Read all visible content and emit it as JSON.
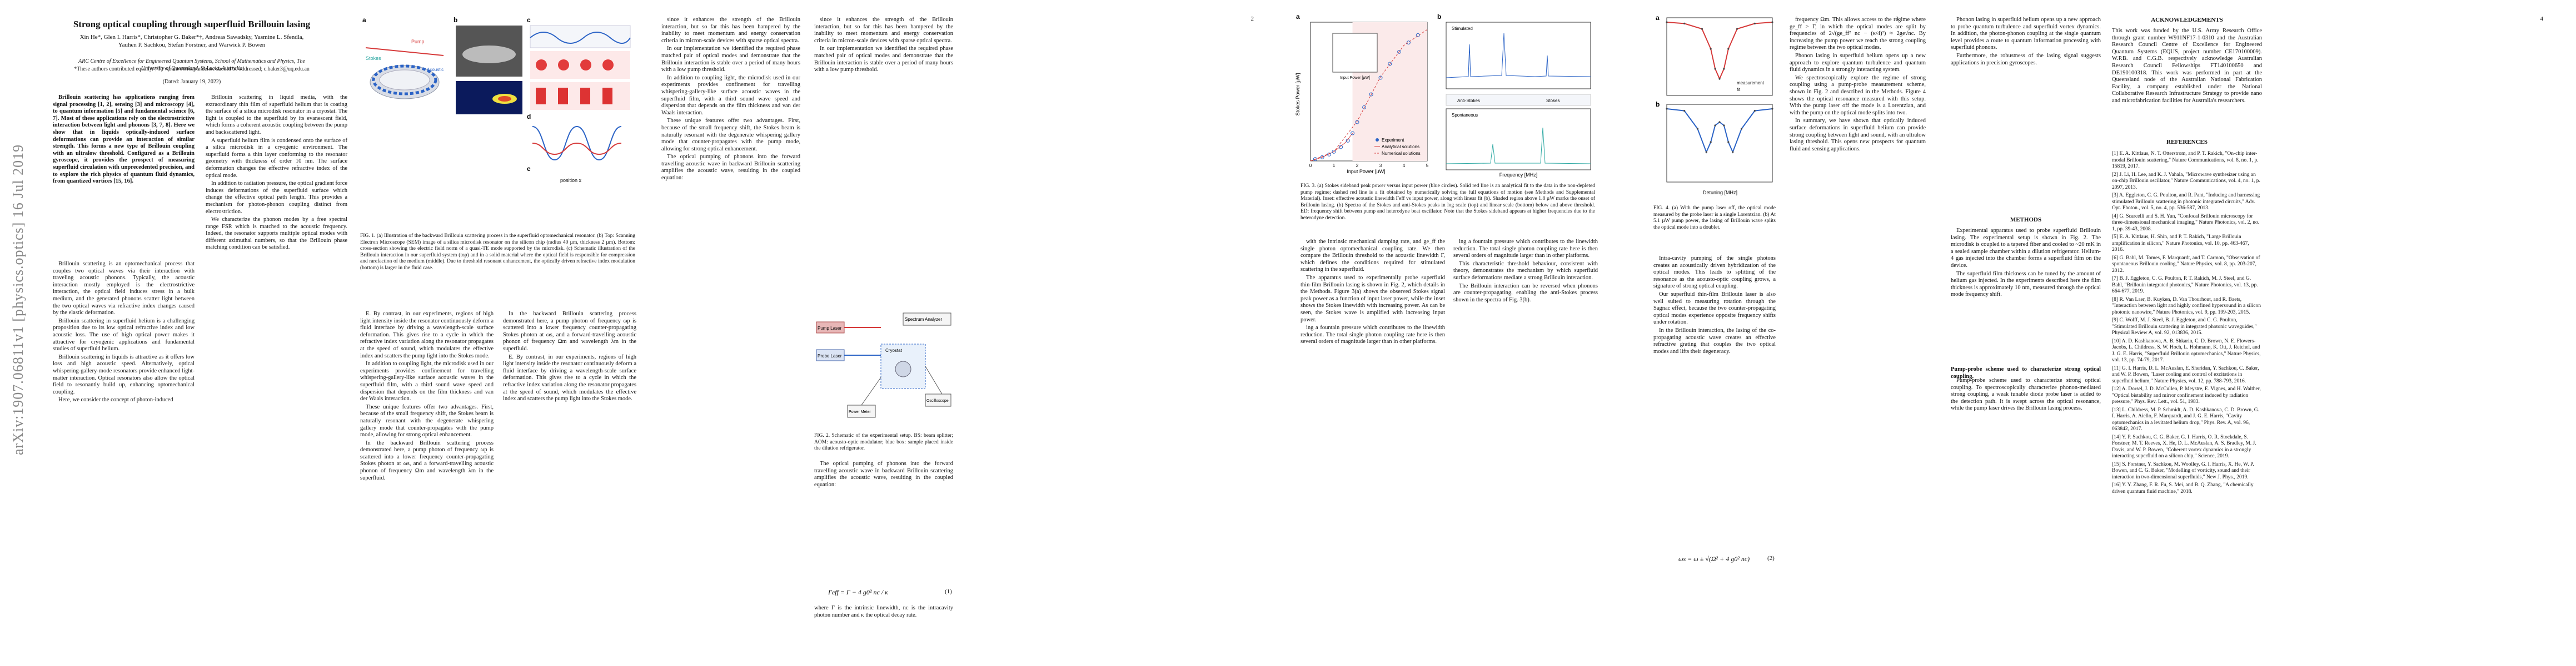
{
  "arxiv_stamp": "arXiv:1907.06811v1  [physics.optics]  16 Jul 2019",
  "page_numbers": [
    "2",
    "3",
    "4"
  ],
  "title": "Strong optical coupling through superfluid Brillouin lasing",
  "authors": "Xin He*, Glen I. Harris*, Christopher G. Baker*†, Andreas Sawadsky, Yasmine L. Sfendla, Yauhen P. Sachkou, Stefan Forstner, and Warwick P. Bowen",
  "affiliation": "ARC Centre of Excellence for Engineered Quantum Systems, School of Mathematics and Physics, The University of Queensland, St Lucia, Australia",
  "footnote": "*These authors contributed equally. †To whom correspondence should be addressed; c.baker3@uq.edu.au",
  "date": "(Dated: January 19, 2022)",
  "abstract": "Brillouin scattering has applications ranging from signal processing [1, 2], sensing [3] and microscopy [4], to quantum information [5] and fundamental science [6, 7]. Most of these applications rely on the electrostrictive interaction between light and phonons [3, 7, 8]. Here we show that in liquids optically-induced surface deformations can provide an interaction of similar strength. This forms a new type of Brillouin coupling with an ultralow threshold. Configured as a Brillouin gyroscope, it provides the prospect of measuring superfluid circulation with unprecedented precision, and to explore the rich physics of quantum fluid dynamics, from quantized vortices [15, 16].",
  "p1_col1": [
    "Brillouin scattering is an optomechanical process that couples two optical waves via their interaction with traveling acoustic phonons. Typically, the acoustic interaction mostly employed is the electrostrictive interaction, the optical field induces stress in a bulk medium, and the generated phonons scatter light between the two optical waves via refractive index changes caused by the elastic deformation.",
    "Brillouin scattering in superfluid helium is a challenging proposition due to its low optical refractive index and low acoustic loss. The use of high optical power makes it attractive for cryogenic applications and fundamental studies of superfluid helium.",
    "Brillouin scattering in liquids is attractive as it offers low loss and high acoustic speed. Alternatively, optical whispering-gallery-mode resonators provide enhanced light-matter interaction. Optical resonators also allow the optical field to resonantly build up, enhancing optomechanical coupling.",
    "Here, we consider the concept of photon-induced"
  ],
  "p1_col2": [
    "Brillouin scattering in liquid media, with the extraordinary thin film of superfluid helium that is coating the surface of a silica microdisk resonator in a cryostat. The light is coupled to the superfluid by its evanescent field, which forms a coherent acoustic coupling between the pump and backscattered light.",
    "A superfluid helium film is condensed onto the surface of a silica microdisk in a cryogenic environment. The superfluid forms a thin layer conforming to the resonator geometry with thickness of order 10 nm. The surface deformation changes the effective refractive index of the optical mode.",
    "In addition to radiation pressure, the optical gradient force induces deformations of the superfluid surface which change the effective optical path length. This provides a mechanism for photon-phonon coupling distinct from electrostriction.",
    "We characterize the phonon modes by a free spectral range FSR which is matched to the acoustic frequency. Indeed, the resonator supports multiple optical modes with different azimuthal numbers, so that the Brillouin phase matching condition can be satisfied."
  ],
  "fig1_labels": {
    "a": "a",
    "b": "b",
    "c": "c",
    "d": "d",
    "e": "e",
    "pump": "Pump",
    "stokes": "Stokes",
    "acoustic": "Acoustic",
    "position": "position x"
  },
  "fig1_caption": "FIG. 1. (a) Illustration of the backward Brillouin scattering process in the superfluid optomechanical resonator. (b) Top: Scanning Electron Microscope (SEM) image of a silica microdisk resonator on the silicon chip (radius 40 µm, thickness 2 µm). Bottom: cross-section showing the electric field norm of a quasi-TE mode supported by the microdisk. (c) Schematic illustration of the Brillouin interaction in our superfluid system (top) and in a solid material where the optical field is responsible for compression and rarefaction of the medium (middle). Due to threshold resonant enhancement, the optically driven refractive index modulation (bottom) is larger in the fluid case.",
  "p2_col1": [
    "E. By contrast, in our experiments, regions of high light intensity inside the resonator continuously deform a fluid interface by driving a wavelength-scale surface deformation. This gives rise to a cycle in which the refractive index variation along the resonator propagates at the speed of sound, which modulates the effective index and scatters the pump light into the Stokes mode.",
    "In addition to coupling light, the microdisk used in our experiments provides confinement for travelling whispering-gallery-like surface acoustic waves in the superfluid film, with a third sound wave speed and dispersion that depends on the film thickness and van der Waals interaction.",
    "These unique features offer two advantages. First, because of the small frequency shift, the Stokes beam is naturally resonant with the degenerate whispering gallery mode that counter-propagates with the pump mode, allowing for strong optical enhancement.",
    "In the backward Brillouin scattering process demonstrated here, a pump photon of frequency ωp is scattered into a lower frequency counter-propagating Stokes photon at ωs, and a forward-travelling acoustic phonon of frequency Ωm and wavelength λm in the superfluid."
  ],
  "p2_col2": [
    "since it enhances the strength of the Brillouin interaction, but so far this has been hampered by the inability to meet momentum and energy conservation criteria in micron-scale devices with sparse optical spectra.",
    "In our implementation we identified the required phase matched pair of optical modes and demonstrate that the Brillouin interaction is stable over a period of many hours with a low pump threshold.",
    "The optical pumping of phonons into the forward travelling acoustic wave in backward Brillouin scattering amplifies the acoustic wave, resulting in the coupled equation:"
  ],
  "eq1": "Γeff = Γ − 4 g0² nc / κ",
  "eq1_num": "(1)",
  "p2_col2_after": "where Γ is the intrinsic linewidth, nc is the intracavity photon number and κ the optical decay rate.",
  "fig2_labels": {
    "pump_laser": "Pump Laser",
    "probe_laser": "Probe Laser",
    "spectrum_analyzer": "Spectrum Analyzer",
    "oscilloscope": "Oscilloscope",
    "cryostat": "Cryostat",
    "pd": "PD",
    "power_meter": "Power Meter"
  },
  "fig2_caption": "FIG. 2. Schematic of the experimental setup. BS: beam splitter; AOM: acousto-optic modulator; blue box: sample placed inside the dilution refrigerator.",
  "fig3_caption": "FIG. 3. (a) Stokes sideband peak power versus input power (blue circles). Solid red line is an analytical fit to the data in the non-depleted pump regime; dashed red line is a fit obtained by numerically solving the full equations of motion (see Methods and Supplemental Material). Inset: effective acoustic linewidth Γeff vs input power, along with linear fit (b). Shaded region above 1.8 µW marks the onset of Brillouin lasing. (b) Spectra of the Stokes and anti-Stokes peaks in log scale (top) and linear scale (bottom) below and above threshold. ED: frequency shift between pump and heterodyne beat oscillator. Note that the Stokes sideband appears at higher frequencies due to the heterodyne detection.",
  "fig3a": {
    "title": "",
    "xlabel": "Input Power [µW]",
    "ylabel": "Stokes Power [µW]",
    "inset_xlabel": "Input Power [µW]",
    "inset_ylabel": "Mechanical Linewidth [Hz]",
    "legend": [
      "Experiment",
      "Analytical solutions",
      "Numerical solutions"
    ],
    "xlim": [
      0,
      5
    ],
    "ylim": [
      0,
      0.015
    ]
  },
  "fig3b": {
    "label_top": "Stimulated",
    "label_mid": "Anti-Stokes",
    "label_stokes": "Stokes",
    "label_bottom": "Spontaneous",
    "xlabel": "Frequency [MHz]",
    "ylabel": "PSD"
  },
  "p3_col1": [
    "with the intrinsic mechanical damping rate, and ge_ff the single photon optomechanical coupling rate. We then compare the Brillouin threshold to the acoustic linewidth Γ, which defines the conditions required for stimulated scattering in the superfluid.",
    "The apparatus used to experimentally probe superfluid thin-film Brillouin lasing is shown in Fig. 2, which details in the Methods. Figure 3(a) shows the observed Stokes signal peak power as a function of input laser power, while the inset shows the Stokes linewidth with increasing power. As can be seen, the Stokes wave is amplified with increasing input power."
  ],
  "p3_col2": [
    "ing a fountain pressure which contributes to the linewidth reduction. The total single photon coupling rate here is then several orders of magnitude larger than in other platforms.",
    "This characteristic threshold behaviour, consistent with theory, demonstrates the mechanism by which superfluid surface deformations mediate a strong Brillouin interaction.",
    "The Brillouin interaction can be reversed when phonons are counter-propagating, enabling the anti-Stokes process shown in the spectra of Fig. 3(b)."
  ],
  "eq2": "ωs = ω ± √(Ω² + 4 g0² nc)",
  "eq2_num": "(2)",
  "p3_col3": [
    "Intra-cavity pumping of the single photons creates an acoustically driven hybridization of the optical modes. This leads to splitting of the resonance as the acousto-optic coupling grows, a signature of strong optical coupling.",
    "Our superfluid thin-film Brillouin laser is also well suited to measuring rotation through the Sagnac effect, because the two counter-propagating optical modes experience opposite frequency shifts under rotation.",
    "In the Brillouin interaction, the lasing of the co-propagating acoustic wave creates an effective refractive grating that couples the two optical modes and lifts their degeneracy."
  ],
  "fig4_labels": {
    "a": "a",
    "b": "b",
    "xlabel": "Detuning [MHz]",
    "ylabel": "Transmission",
    "legend_meas": "measurement",
    "legend_fit": "fit"
  },
  "fig4_caption": "FIG. 4. (a) With the pump laser off, the optical mode measured by the probe laser is a single Lorentzian. (b) At 5.1 µW pump power, the lasing of Brillouin wave splits the optical mode into a doublet.",
  "p4_col1": [
    "frequency Ωm. This allows access to the regime where ge_ff > Γ, in which the optical modes are split by frequencies of 2√(ge_ff² nc − (κ/4)²) ≈ 2ge√nc. By increasing the pump power we reach the strong coupling regime between the two optical modes.",
    "Phonon lasing in superfluid helium opens up a new approach to explore quantum turbulence and quantum fluid dynamics in a strongly interacting system.",
    "We spectroscopically explore the regime of strong coupling using a pump-probe measurement scheme, shown in Fig. 2 and described in the Methods. Figure 4 shows the optical resonance measured with this setup. With the pump laser off the mode is a Lorentzian, and with the pump on the optical mode splits into two.",
    "In summary, we have shown that optically induced surface deformations in superfluid helium can provide strong coupling between light and sound, with an ultralow lasing threshold. This opens new prospects for quantum fluid and sensing applications."
  ],
  "p4_col2": [
    "Phonon lasing in superfluid helium opens up a new approach to probe quantum turbulence and superfluid vortex dynamics. In addition, the photon-phonon coupling at the single quantum level provides a route to quantum information processing with superfluid phonons.",
    "Furthermore, the robustness of the lasing signal suggests applications in precision gyroscopes."
  ],
  "methods_heading": "METHODS",
  "methods_sub1": "Experimental apparatus used to probe superfluid Brillouin lasing.",
  "methods_text": [
    "Experimental apparatus used to probe superfluid Brillouin lasing. The experimental setup is shown in Fig. 2. The microdisk is coupled to a tapered fiber and cooled to ~20 mK in a sealed sample chamber within a dilution refrigerator. Helium-4 gas injected into the chamber forms a superfluid film on the device.",
    "The superfluid film thickness can be tuned by the amount of helium gas injected. In the experiments described here the film thickness is approximately 10 nm, measured through the optical mode frequency shift."
  ],
  "methods_sub2": "Pump-probe scheme used to characterize strong optical coupling.",
  "methods_text2": [
    "Pump-probe scheme used to characterize strong optical coupling. To spectroscopically characterize phonon-mediated strong coupling, a weak tunable diode probe laser is added to the detection path. It is swept across the optical resonance, while the pump laser drives the Brillouin lasing process."
  ],
  "ack_heading": "ACKNOWLEDGEMENTS",
  "ack_text": "This work was funded by the U.S. Army Research Office through grant number W911NF17-1-0310 and the Australian Research Council Centre of Excellence for Engineered Quantum Systems (EQUS, project number CE170100009). W.P.B. and C.G.B. respectively acknowledge Australian Research Council Fellowships FT140100650 and DE190100318. This work was performed in part at the Queensland node of the Australian National Fabrication Facility, a company established under the National Collaborative Research Infrastructure Strategy to provide nano and microfabrication facilities for Australia's researchers.",
  "refs_heading": "REFERENCES",
  "references": [
    "[1] E. A. Kittlaus, N. T. Otterstrom, and P. T. Rakich, \"On-chip inter-modal Brillouin scattering,\" Nature Communications, vol. 8, no. 1, p. 15819, 2017.",
    "[2] J. Li, H. Lee, and K. J. Vahala, \"Microwave synthesizer using an on-chip Brillouin oscillator,\" Nature Communications, vol. 4, no. 1, p. 2097, 2013.",
    "[3] A. Eggleton, C. G. Poulton, and R. Pant, \"Inducing and harnessing stimulated Brillouin scattering in photonic integrated circuits,\" Adv. Opt. Photon., vol. 5, no. 4, pp. 536-587, 2013.",
    "[4] G. Scarcelli and S. H. Yun, \"Confocal Brillouin microscopy for three-dimensional mechanical imaging,\" Nature Photonics, vol. 2, no. 1, pp. 39-43, 2008.",
    "[5] E. A. Kittlaus, H. Shin, and P. T. Rakich, \"Large Brillouin amplification in silicon,\" Nature Photonics, vol. 10, pp. 463-467, 2016.",
    "[6] G. Bahl, M. Tomes, F. Marquardt, and T. Carmon, \"Observation of spontaneous Brillouin cooling,\" Nature Physics, vol. 8, pp. 203-207, 2012.",
    "[7] B. J. Eggleton, C. G. Poulton, P. T. Rakich, M. J. Steel, and G. Bahl, \"Brillouin integrated photonics,\" Nature Photonics, vol. 13, pp. 664-677, 2019.",
    "[8] R. Van Laer, B. Kuyken, D. Van Thourhout, and R. Baets, \"Interaction between light and highly confined hypersound in a silicon photonic nanowire,\" Nature Photonics, vol. 9, pp. 199-203, 2015.",
    "[9] C. Wolff, M. J. Steel, B. J. Eggleton, and C. G. Poulton, \"Stimulated Brillouin scattering in integrated photonic waveguides,\" Physical Review A, vol. 92, 013836, 2015.",
    "[10] A. D. Kashkanova, A. B. Shkarin, C. D. Brown, N. E. Flowers-Jacobs, L. Childress, S. W. Hoch, L. Hohmann, K. Ott, J. Reichel, and J. G. E. Harris, \"Superfluid Brillouin optomechanics,\" Nature Physics, vol. 13, pp. 74-79, 2017.",
    "[11] G. I. Harris, D. L. McAuslan, E. Sheridan, Y. Sachkou, C. Baker, and W. P. Bowen, \"Laser cooling and control of excitations in superfluid helium,\" Nature Physics, vol. 12, pp. 788-793, 2016.",
    "[12] A. Dorsel, J. D. McCullen, P. Meystre, E. Vignes, and H. Walther, \"Optical bistability and mirror confinement induced by radiation pressure,\" Phys. Rev. Lett., vol. 51, 1983.",
    "[13] L. Childress, M. P. Schmidt, A. D. Kashkanova, C. D. Brown, G. I. Harris, A. Aiello, F. Marquardt, and J. G. E. Harris, \"Cavity optomechanics in a levitated helium drop,\" Phys. Rev. A, vol. 96, 063842, 2017.",
    "[14] Y. P. Sachkou, C. G. Baker, G. I. Harris, O. R. Stockdale, S. Forstner, M. T. Reeves, X. He, D. L. McAuslan, A. S. Bradley, M. J. Davis, and W. P. Bowen, \"Coherent vortex dynamics in a strongly interacting superfluid on a silicon chip,\" Science, 2019.",
    "[15] S. Forstner, Y. Sachkou, M. Woolley, G. I. Harris, X. He, W. P. Bowen, and C. G. Baker, \"Modelling of vorticity, sound and their interaction in two-dimensional superfluids,\" New J. Phys., 2019.",
    "[16] Y. Y. Zhang, F. R. Fu, S. Mei, and B. Q. Zhang, \"A chemically driven quantum fluid machine,\" 2018."
  ],
  "colors": {
    "blue": "#2b63c6",
    "red": "#d63a3a",
    "teal": "#2aa7a1",
    "gray": "#888888"
  },
  "chart_data": [
    {
      "type": "scatter",
      "title": "",
      "xlabel": "Input Power [µW]",
      "ylabel": "Stokes Power [µW]",
      "xlim": [
        0,
        5
      ],
      "ylim": [
        0,
        0.015
      ],
      "series": [
        {
          "name": "Experiment",
          "x": [
            0.2,
            0.5,
            0.8,
            1.0,
            1.3,
            1.6,
            1.8,
            2.0,
            2.3,
            2.6,
            3.0,
            3.4,
            3.8,
            4.2,
            4.6
          ],
          "y": [
            0.0002,
            0.0004,
            0.0007,
            0.001,
            0.0015,
            0.0022,
            0.003,
            0.0042,
            0.0058,
            0.0072,
            0.009,
            0.0105,
            0.0118,
            0.0128,
            0.0136
          ]
        },
        {
          "name": "Analytical solutions",
          "x": [
            0,
            0.5,
            1.0,
            1.5,
            1.8
          ],
          "y": [
            0,
            0.0004,
            0.001,
            0.002,
            0.003
          ]
        },
        {
          "name": "Numerical solutions",
          "x": [
            0,
            1,
            2,
            3,
            4,
            5
          ],
          "y": [
            0,
            0.001,
            0.0043,
            0.0091,
            0.0125,
            0.0142
          ]
        }
      ]
    },
    {
      "type": "line",
      "title": "",
      "xlabel": "Detuning [MHz]",
      "ylabel": "Transmission",
      "series": [
        {
          "name": "measurement",
          "x": [
            -60,
            -40,
            -20,
            -10,
            -5,
            0,
            5,
            10,
            20,
            40,
            60
          ],
          "y": [
            1.0,
            0.98,
            0.9,
            0.6,
            0.3,
            0.15,
            0.3,
            0.6,
            0.9,
            0.98,
            1.0
          ]
        },
        {
          "name": "measurement",
          "x": [
            -60,
            -40,
            -25,
            -15,
            -10,
            -5,
            0,
            5,
            10,
            15,
            25,
            40,
            60
          ],
          "y": [
            1.0,
            0.97,
            0.7,
            0.35,
            0.5,
            0.75,
            0.8,
            0.75,
            0.5,
            0.35,
            0.7,
            0.97,
            1.0
          ]
        }
      ]
    }
  ]
}
